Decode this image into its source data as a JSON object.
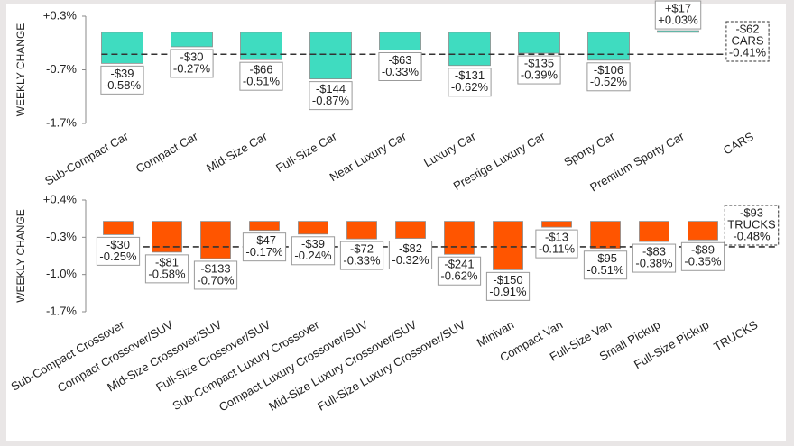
{
  "chart_data": [
    {
      "type": "bar",
      "ylabel": "WEEKLY CHANGE",
      "categories": [
        "Sub-Compact Car",
        "Compact Car",
        "Mid-Size Car",
        "Full-Size Car",
        "Near Luxury Car",
        "Luxury Car",
        "Prestige Luxury Car",
        "Sporty Car",
        "Premium Sporty Car",
        "CARS"
      ],
      "values": [
        -0.58,
        -0.27,
        -0.51,
        -0.87,
        -0.33,
        -0.62,
        -0.39,
        -0.52,
        0.03,
        -0.41
      ],
      "value_labels": [
        "-0.58%",
        "-0.27%",
        "-0.51%",
        "-0.87%",
        "-0.33%",
        "-0.62%",
        "-0.39%",
        "-0.52%",
        "+0.03%",
        "-0.41%"
      ],
      "dollar_labels": [
        "-$39",
        "-$30",
        "-$66",
        "-$144",
        "-$63",
        "-$131",
        "-$135",
        "-$106",
        "+$17",
        "-$62"
      ],
      "color": "#3fdcc0",
      "average_last": true,
      "ylim": [
        -1.7,
        0.3
      ],
      "yticks": [
        {
          "value": 0.3,
          "label": "+0.3%"
        },
        {
          "value": -0.7,
          "label": "-0.7%"
        },
        {
          "value": -1.7,
          "label": "-1.7%"
        }
      ]
    },
    {
      "type": "bar",
      "ylabel": "WEEKLY CHANGE",
      "categories": [
        "Sub-Compact Crossover",
        "Compact Crossover/SUV",
        "Mid-Size Crossover/SUV",
        "Full-Size Crossover/SUV",
        "Sub-Compact Luxury Crossover",
        "Compact Luxury Crossover/SUV",
        "Mid-Size Luxury Crossover/SUV",
        "Full-Size Luxury Crossover/SUV",
        "Minivan",
        "Compact Van",
        "Full-Size Van",
        "Small Pickup",
        "Full-Size Pickup",
        "TRUCKS"
      ],
      "values": [
        -0.25,
        -0.58,
        -0.7,
        -0.17,
        -0.24,
        -0.33,
        -0.32,
        -0.62,
        -0.91,
        -0.11,
        -0.51,
        -0.38,
        -0.35,
        -0.48
      ],
      "value_labels": [
        "-0.25%",
        "-0.58%",
        "-0.70%",
        "-0.17%",
        "-0.24%",
        "-0.33%",
        "-0.32%",
        "-0.62%",
        "-0.91%",
        "-0.11%",
        "-0.51%",
        "-0.38%",
        "-0.35%",
        "-0.48%"
      ],
      "dollar_labels": [
        "-$30",
        "-$81",
        "-$133",
        "-$47",
        "-$39",
        "-$72",
        "-$82",
        "-$241",
        "-$150",
        "-$13",
        "-$95",
        "-$83",
        "-$89",
        "-$93"
      ],
      "color": "#ff5500",
      "average_last": true,
      "ylim": [
        -1.7,
        0.4
      ],
      "yticks": [
        {
          "value": 0.4,
          "label": "+0.4%"
        },
        {
          "value": -0.3,
          "label": "-0.3%"
        },
        {
          "value": -1.0,
          "label": "-1.0%"
        },
        {
          "value": -1.7,
          "label": "-1.7%"
        }
      ]
    }
  ]
}
